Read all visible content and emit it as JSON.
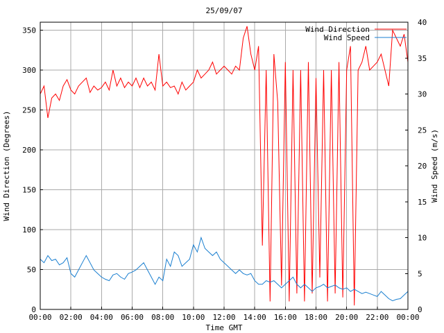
{
  "chart_data": {
    "type": "line",
    "title": "25/09/07",
    "xlabel": "Time GMT",
    "ylabel_left": "Wind Direction (Degrees)",
    "ylabel_right": "Wind Speed (m/s)",
    "x_ticks": [
      "00:00",
      "02:00",
      "04:00",
      "06:00",
      "08:00",
      "10:00",
      "12:00",
      "14:00",
      "16:00",
      "18:00",
      "20:00",
      "22:00",
      "00:00"
    ],
    "y_left_ticks": [
      0,
      50,
      100,
      150,
      200,
      250,
      300,
      350
    ],
    "y_right_ticks": [
      0,
      5,
      10,
      15,
      20,
      25,
      30,
      35,
      40
    ],
    "y_left_lim": [
      0,
      360
    ],
    "y_right_lim": [
      0,
      40
    ],
    "x_lim_hours": [
      0,
      24
    ],
    "grid": true,
    "legend_position": "top-right",
    "colors": {
      "direction": "#ff0000",
      "speed": "#1a7fd0"
    },
    "series": [
      {
        "name": "Wind Direction",
        "axis": "left",
        "x_hours": [
          0,
          0.25,
          0.5,
          0.75,
          1,
          1.25,
          1.5,
          1.75,
          2,
          2.25,
          2.5,
          2.75,
          3,
          3.25,
          3.5,
          3.75,
          4,
          4.25,
          4.5,
          4.75,
          5,
          5.25,
          5.5,
          5.75,
          6,
          6.25,
          6.5,
          6.75,
          7,
          7.25,
          7.5,
          7.75,
          8,
          8.25,
          8.5,
          8.75,
          9,
          9.25,
          9.5,
          9.75,
          10,
          10.25,
          10.5,
          10.75,
          11,
          11.25,
          11.5,
          11.75,
          12,
          12.25,
          12.5,
          12.75,
          13,
          13.25,
          13.5,
          13.75,
          14,
          14.25,
          14.5,
          14.75,
          15,
          15.25,
          15.5,
          15.75,
          16,
          16.25,
          16.5,
          16.75,
          17,
          17.25,
          17.5,
          17.75,
          18,
          18.25,
          18.5,
          18.75,
          19,
          19.25,
          19.5,
          19.75,
          20,
          20.25,
          20.5,
          20.75,
          21,
          21.25,
          21.5,
          21.75,
          22,
          22.25,
          22.5,
          22.75,
          23,
          23.25,
          23.5,
          23.75,
          24
        ],
        "values": [
          270,
          280,
          240,
          265,
          270,
          262,
          280,
          288,
          275,
          270,
          280,
          285,
          290,
          272,
          280,
          275,
          278,
          285,
          275,
          300,
          280,
          290,
          278,
          285,
          280,
          290,
          278,
          290,
          280,
          285,
          275,
          320,
          280,
          285,
          278,
          280,
          270,
          285,
          275,
          280,
          285,
          300,
          290,
          295,
          300,
          310,
          295,
          300,
          305,
          300,
          295,
          305,
          300,
          340,
          355,
          320,
          300,
          330,
          80,
          300,
          10,
          320,
          260,
          30,
          310,
          10,
          300,
          20,
          300,
          10,
          310,
          20,
          290,
          40,
          300,
          10,
          300,
          20,
          310,
          15,
          300,
          330,
          5,
          300,
          310,
          330,
          300,
          305,
          310,
          320,
          300,
          280,
          350,
          340,
          330,
          345,
          310
        ]
      },
      {
        "name": "Wind Speed",
        "axis": "right",
        "x_hours": [
          0,
          0.25,
          0.5,
          0.75,
          1,
          1.25,
          1.5,
          1.75,
          2,
          2.25,
          2.5,
          2.75,
          3,
          3.25,
          3.5,
          3.75,
          4,
          4.25,
          4.5,
          4.75,
          5,
          5.25,
          5.5,
          5.75,
          6,
          6.25,
          6.5,
          6.75,
          7,
          7.25,
          7.5,
          7.75,
          8,
          8.25,
          8.5,
          8.75,
          9,
          9.25,
          9.5,
          9.75,
          10,
          10.25,
          10.5,
          10.75,
          11,
          11.25,
          11.5,
          11.75,
          12,
          12.25,
          12.5,
          12.75,
          13,
          13.25,
          13.5,
          13.75,
          14,
          14.25,
          14.5,
          14.75,
          15,
          15.25,
          15.5,
          15.75,
          16,
          16.25,
          16.5,
          16.75,
          17,
          17.25,
          17.5,
          17.75,
          18,
          18.25,
          18.5,
          18.75,
          19,
          19.25,
          19.5,
          19.75,
          20,
          20.25,
          20.5,
          20.75,
          21,
          21.25,
          21.5,
          21.75,
          22,
          22.25,
          22.5,
          22.75,
          23,
          23.25,
          23.5,
          23.75,
          24
        ],
        "values": [
          7,
          6.5,
          7.5,
          6.8,
          7,
          6.2,
          6.5,
          7.2,
          5,
          4.5,
          5.5,
          6.5,
          7.5,
          6.5,
          5.5,
          5,
          4.5,
          4.2,
          4,
          4.8,
          5,
          4.5,
          4.2,
          5,
          5.2,
          5.5,
          6,
          6.5,
          5.5,
          4.5,
          3.5,
          4.5,
          4,
          7,
          6,
          8,
          7.5,
          6,
          6.5,
          7,
          9,
          8,
          10,
          8.5,
          8,
          7.5,
          8,
          7,
          6.5,
          6,
          5.5,
          5,
          5.5,
          5,
          4.8,
          5,
          4,
          3.5,
          3.5,
          4,
          3.8,
          4,
          3.5,
          3,
          3.5,
          4,
          4.5,
          3.5,
          3,
          3.5,
          3,
          2.5,
          3,
          3.2,
          3.5,
          3,
          3.2,
          3.4,
          3,
          2.8,
          3,
          2.5,
          2.8,
          2.5,
          2.2,
          2.4,
          2.2,
          2,
          1.8,
          2.5,
          2,
          1.5,
          1.2,
          1.4,
          1.5,
          2,
          2.5
        ]
      }
    ]
  }
}
